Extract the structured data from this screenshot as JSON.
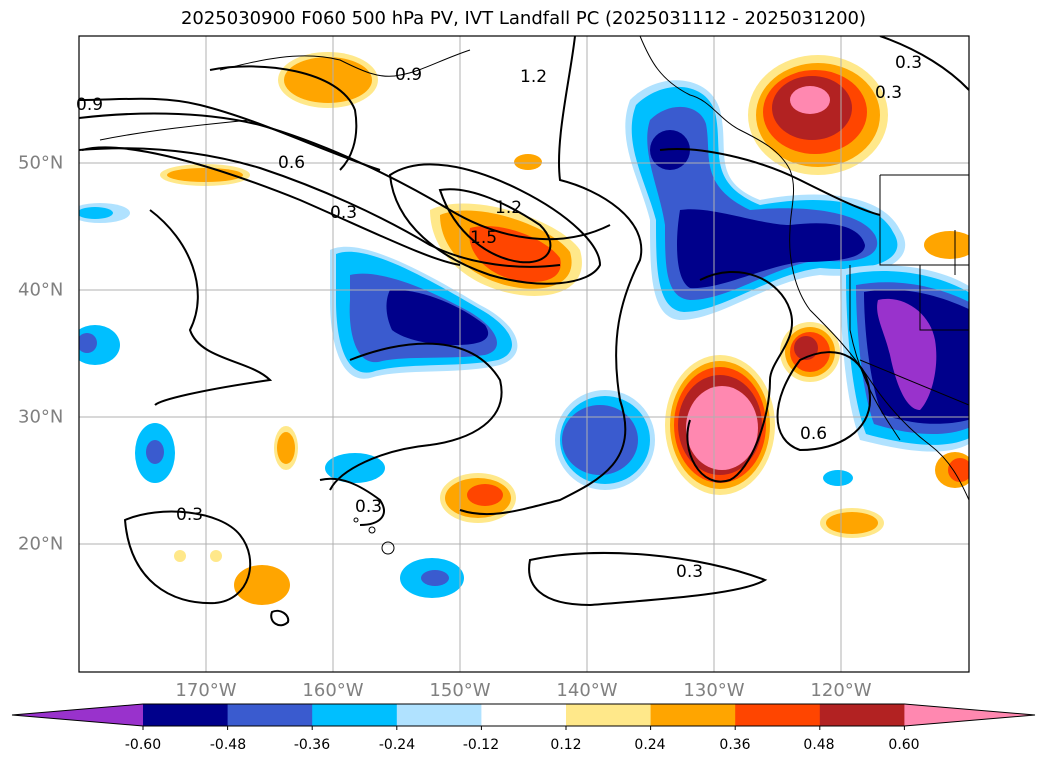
{
  "title": "2025030900 F060 500 hPa PV, IVT Landfall PC (2025031112 - 2025031200)",
  "map": {
    "projection": "PlateCarree",
    "lon_range": [
      -180,
      -110
    ],
    "lat_range": [
      10,
      60
    ],
    "gridlines": true,
    "coastlines": true,
    "state_borders": true
  },
  "lon_ticks": [
    "170°W",
    "160°W",
    "150°W",
    "140°W",
    "130°W",
    "120°W"
  ],
  "lat_ticks": [
    "50°N",
    "40°N",
    "30°N",
    "20°N"
  ],
  "contour_labels": [
    "0.9",
    "0.9",
    "1.2",
    "0.3",
    "0.3",
    "0.6",
    "0.3",
    "1.2",
    "1.5",
    "0.6",
    "0.3",
    "0.3",
    "0.3"
  ],
  "colorbar": {
    "extend": "both",
    "colors": [
      "#9932cc",
      "#00008b",
      "#3a5bcf",
      "#00bfff",
      "#b0e2ff",
      "#ffffff",
      "#ffe88a",
      "#ffa500",
      "#ff4500",
      "#b22222",
      "#ff88b0"
    ],
    "tick_labels": [
      "-0.60",
      "-0.48",
      "-0.36",
      "-0.24",
      "-0.12",
      "0.12",
      "0.24",
      "0.36",
      "0.48",
      "0.60"
    ]
  }
}
